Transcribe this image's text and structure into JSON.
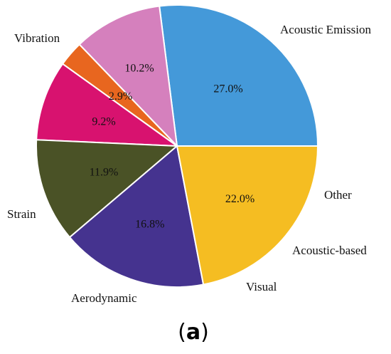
{
  "chart_data": {
    "type": "pie",
    "categories": [
      "Acoustic Emission",
      "Other",
      "Acoustic-based",
      "Visual",
      "Aerodynamic",
      "Strain",
      "Vibration"
    ],
    "values": [
      27.0,
      10.2,
      2.9,
      9.2,
      11.9,
      16.8,
      22.0
    ],
    "value_labels": [
      "27.0%",
      "10.2%",
      "2.9%",
      "9.2%",
      "11.9%",
      "16.8%",
      "22.0%"
    ],
    "colors": [
      "#4499d9",
      "#d580bd",
      "#e8661f",
      "#d8126f",
      "#4a5226",
      "#45338f",
      "#f5bd22"
    ],
    "start_angle_deg": 0,
    "direction": "clockwise",
    "title": ""
  },
  "panel_label": {
    "open": "(",
    "letter": "a",
    "close": ")"
  }
}
